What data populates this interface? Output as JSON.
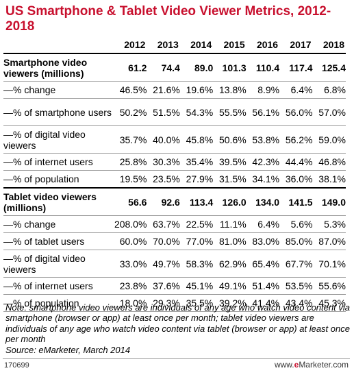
{
  "chart_data": {
    "type": "table",
    "title": "US Smartphone & Tablet Video Viewer Metrics, 2012-2018",
    "columns": [
      "2012",
      "2013",
      "2014",
      "2015",
      "2016",
      "2017",
      "2018"
    ],
    "rows": [
      {
        "label": "Smartphone video viewers (millions)",
        "bold": true,
        "tall": true,
        "values": [
          "61.2",
          "74.4",
          "89.0",
          "101.3",
          "110.4",
          "117.4",
          "125.4"
        ]
      },
      {
        "label": "—% change",
        "values": [
          "46.5%",
          "21.6%",
          "19.6%",
          "13.8%",
          "8.9%",
          "6.4%",
          "6.8%"
        ]
      },
      {
        "label": "—% of smartphone users",
        "tall": true,
        "values": [
          "50.2%",
          "51.5%",
          "54.3%",
          "55.5%",
          "56.1%",
          "56.0%",
          "57.0%"
        ]
      },
      {
        "label": "—% of digital video viewers",
        "tall": true,
        "values": [
          "35.7%",
          "40.0%",
          "45.8%",
          "50.6%",
          "53.8%",
          "56.2%",
          "59.0%"
        ]
      },
      {
        "label": "—% of internet users",
        "values": [
          "25.8%",
          "30.3%",
          "35.4%",
          "39.5%",
          "42.3%",
          "44.4%",
          "46.8%"
        ]
      },
      {
        "label": "—% of population",
        "section_end": true,
        "values": [
          "19.5%",
          "23.5%",
          "27.9%",
          "31.5%",
          "34.1%",
          "36.0%",
          "38.1%"
        ]
      },
      {
        "label": "Tablet video viewers (millions)",
        "bold": true,
        "tall": true,
        "values": [
          "56.6",
          "92.6",
          "113.4",
          "126.0",
          "134.0",
          "141.5",
          "149.0"
        ]
      },
      {
        "label": "—% change",
        "values": [
          "208.0%",
          "63.7%",
          "22.5%",
          "11.1%",
          "6.4%",
          "5.6%",
          "5.3%"
        ]
      },
      {
        "label": "—% of tablet users",
        "values": [
          "60.0%",
          "70.0%",
          "77.0%",
          "81.0%",
          "83.0%",
          "85.0%",
          "87.0%"
        ]
      },
      {
        "label": "—% of digital video viewers",
        "tall": true,
        "values": [
          "33.0%",
          "49.7%",
          "58.3%",
          "62.9%",
          "65.4%",
          "67.7%",
          "70.1%"
        ]
      },
      {
        "label": "—% of internet users",
        "values": [
          "23.8%",
          "37.6%",
          "45.1%",
          "49.1%",
          "51.4%",
          "53.5%",
          "55.6%"
        ]
      },
      {
        "label": "—% of population",
        "values": [
          "18.0%",
          "29.3%",
          "35.5%",
          "39.2%",
          "41.4%",
          "43.4%",
          "45.3%"
        ]
      }
    ],
    "note": "Note: smartphone video viewers are individuals of any age who watch video content via smartphone (browser or app) at least once per month; tablet video viewers are individuals of any age who watch video content via tablet (browser or app) at least once per month",
    "source": "Source: eMarketer, March 2014"
  },
  "footer": {
    "chart_id": "170699",
    "brand_prefix": "www.",
    "brand_e": "e",
    "brand_rest": "Marketer.com"
  },
  "colors": {
    "title": "#c8102e",
    "rule_dark": "#000000",
    "rule_light": "#9a9a9a"
  }
}
